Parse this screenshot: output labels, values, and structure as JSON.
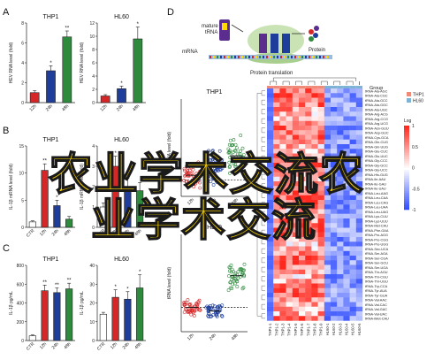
{
  "panels": {
    "A": {
      "letter": "A",
      "charts": [
        {
          "title": "THP1",
          "ylabel": "HEV RNA level (fold)",
          "ylim": [
            0,
            8
          ],
          "yticks": [
            "0",
            "2",
            "4",
            "6",
            "8"
          ],
          "categories": [
            "12h",
            "24h",
            "48h"
          ],
          "values": [
            1.0,
            3.2,
            6.6
          ],
          "errors": [
            0.2,
            0.5,
            0.6
          ],
          "stars": [
            "",
            "*",
            "**"
          ],
          "colors": [
            "#d62728",
            "#1f3e9c",
            "#2e8b3e"
          ]
        },
        {
          "title": "HL60",
          "ylabel": "HEV RNA level (fold)",
          "ylim": [
            0,
            12
          ],
          "yticks": [
            "0",
            "2",
            "4",
            "6",
            "8",
            "10",
            "12"
          ],
          "categories": [
            "12h",
            "24h",
            "48h"
          ],
          "values": [
            1.0,
            2.1,
            9.6
          ],
          "errors": [
            0.2,
            0.4,
            1.8
          ],
          "stars": [
            "",
            "*",
            "*"
          ],
          "colors": [
            "#d62728",
            "#1f3e9c",
            "#2e8b3e"
          ]
        }
      ]
    },
    "B": {
      "letter": "B",
      "charts": [
        {
          "title": "THP1",
          "ylabel": "IL-1β mRNA level (fold)",
          "ylim": [
            0,
            15
          ],
          "yticks": [
            "0",
            "5",
            "10",
            "15"
          ],
          "categories": [
            "CTR",
            "12h",
            "24h",
            "48h"
          ],
          "values": [
            1.0,
            10.5,
            4.0,
            1.5
          ],
          "errors": [
            0.2,
            1.2,
            1.0,
            0.5
          ],
          "stars": [
            "",
            "**",
            "*",
            ""
          ],
          "colors": [
            "#ffffff",
            "#d62728",
            "#1f3e9c",
            "#2e8b3e"
          ]
        },
        {
          "title": "HL60",
          "ylabel": "IL-1β mRNA level (fold)",
          "ylim": [
            0,
            4
          ],
          "yticks": [
            "0",
            "1",
            "2",
            "3",
            "4"
          ],
          "categories": [
            "CTR",
            "12h",
            "24h",
            "48h"
          ],
          "values": [
            1.0,
            3.0,
            2.0,
            1.8
          ],
          "errors": [
            0.2,
            0.5,
            0.4,
            0.4
          ],
          "stars": [
            "",
            "*",
            "*",
            ""
          ],
          "colors": [
            "#ffffff",
            "#d62728",
            "#1f3e9c",
            "#2e8b3e"
          ]
        }
      ]
    },
    "C": {
      "letter": "C",
      "charts": [
        {
          "title": "THP1",
          "ylabel": "IL-1β pg/mL",
          "ylim": [
            0,
            800
          ],
          "yticks": [
            "0",
            "200",
            "400",
            "600",
            "800"
          ],
          "categories": [
            "CTR",
            "12h",
            "24h",
            "48h"
          ],
          "values": [
            50,
            530,
            510,
            550
          ],
          "errors": [
            10,
            60,
            50,
            60
          ],
          "stars": [
            "",
            "**",
            "**",
            "**"
          ],
          "colors": [
            "#ffffff",
            "#d62728",
            "#1f3e9c",
            "#2e8b3e"
          ]
        },
        {
          "title": "HL60",
          "ylabel": "IL-1β pg/mL",
          "ylim": [
            0,
            40
          ],
          "yticks": [
            "0",
            "10",
            "20",
            "30",
            "40"
          ],
          "categories": [
            "CTR",
            "12h",
            "24h",
            "48h"
          ],
          "values": [
            14,
            23,
            22,
            28
          ],
          "errors": [
            1,
            4,
            4,
            7
          ],
          "stars": [
            "",
            "*",
            "*",
            "*"
          ],
          "colors": [
            "#ffffff",
            "#d62728",
            "#1f3e9c",
            "#2e8b3e"
          ]
        }
      ]
    },
    "D": {
      "letter": "D",
      "schematic": {
        "trna_label": "mature\ntRNA",
        "mrna_label": "mRNA",
        "caption": "Protein translation",
        "protein_label": "Protein"
      },
      "scatter": [
        {
          "title": "THP1",
          "ylabel": "tRNA level (fold)",
          "categories": [
            "12h",
            "24h",
            "48h"
          ],
          "colors": [
            "#d62728",
            "#1f3e9c",
            "#2e8b3e"
          ],
          "centers": [
            1.3,
            1.8,
            2.5
          ],
          "spreads": [
            0.9,
            1.3,
            1.4
          ]
        },
        {
          "title": "HL60",
          "ylabel": "tRNA level (fold)",
          "categories": [
            "12h",
            "24h",
            "48h"
          ],
          "colors": [
            "#d62728",
            "#1f3e9c",
            "#2e8b3e"
          ],
          "centers": [
            1.0,
            0.85,
            2.3
          ],
          "spreads": [
            0.35,
            0.35,
            0.7
          ]
        }
      ],
      "heatmap": {
        "columns": [
          "THP1-1",
          "THP1-2",
          "THP1-3",
          "THP1-4",
          "THP1-5",
          "THP1-6",
          "THP1-7",
          "THP1-8",
          "THP1-9",
          "HL60-1",
          "HL60-2",
          "HL60-3",
          "HL60-4",
          "HL60-5",
          "HL60-6"
        ],
        "group_colors": [
          "#ef8a78",
          "#ef8a78",
          "#ef8a78",
          "#ef8a78",
          "#ef8a78",
          "#ef8a78",
          "#ef8a78",
          "#ef8a78",
          "#ef8a78",
          "#7fb3d5",
          "#7fb3d5",
          "#7fb3d5",
          "#7fb3d5",
          "#7fb3d5",
          "#7fb3d5"
        ],
        "legend_title": "Group",
        "legend_items": [
          {
            "label": "THP1",
            "color": "#ef8a78"
          },
          {
            "label": "HL60",
            "color": "#7fb3d5"
          }
        ],
        "scale_title": "Log",
        "scale_ticks": [
          "1",
          "0.5",
          "0",
          "-0.5",
          "-1"
        ],
        "rows": [
          "tRNA-Ala-AGC",
          "tRNA-Ala-CGC",
          "tRNA-Ala-GCC",
          "tRNA-Ala-GGC",
          "tRNA-Ala-UGC",
          "tRNA-Arg-ACG",
          "tRNA-Arg-CCG",
          "tRNA-Arg-UCG",
          "tRNA-Asn-GUU",
          "tRNA-Asp-GUC",
          "tRNA-Cys-GCA",
          "tRNA-Gln-CUG",
          "tRNA-Gln-UUG",
          "tRNA-Glu-CUC",
          "tRNA-Glu-UUC",
          "tRNA-Gly-CCC",
          "tRNA-Gly-GCC",
          "tRNA-Gly-UCC",
          "tRNA-His-GUG",
          "tRNA-Ile-AAU",
          "tRNA-Ile-GAU",
          "tRNA-Ile-UAU",
          "tRNA-Leu-AAG",
          "tRNA-Leu-CAA",
          "tRNA-Leu-CAG",
          "tRNA-Leu-UAA",
          "tRNA-Leu-UAG",
          "tRNA-Lys-CUU",
          "tRNA-Lys-UUU",
          "tRNA-Met-CAU",
          "tRNA-Phe-GAA",
          "tRNA-Pro-AGG",
          "tRNA-Pro-CGG",
          "tRNA-Pro-UGG",
          "tRNA-Sec-UCA",
          "tRNA-Ser-AGA",
          "tRNA-Ser-CGA",
          "tRNA-Ser-GCU",
          "tRNA-Ser-UGA",
          "tRNA-Thr-AGU",
          "tRNA-Thr-CGU",
          "tRNA-Thr-UGU",
          "tRNA-Trp-CCA",
          "tRNA-Tyr-AUA",
          "tRNA-Tyr-GUA",
          "tRNA-Val-AAC",
          "tRNA-Val-CAC",
          "tRNA-Val-GAC",
          "tRNA-Val-UAC",
          "tRNA-iMet-CAU"
        ]
      }
    }
  },
  "watermark": {
    "line1": "农业学术交流农",
    "line2": "业学术交流"
  }
}
